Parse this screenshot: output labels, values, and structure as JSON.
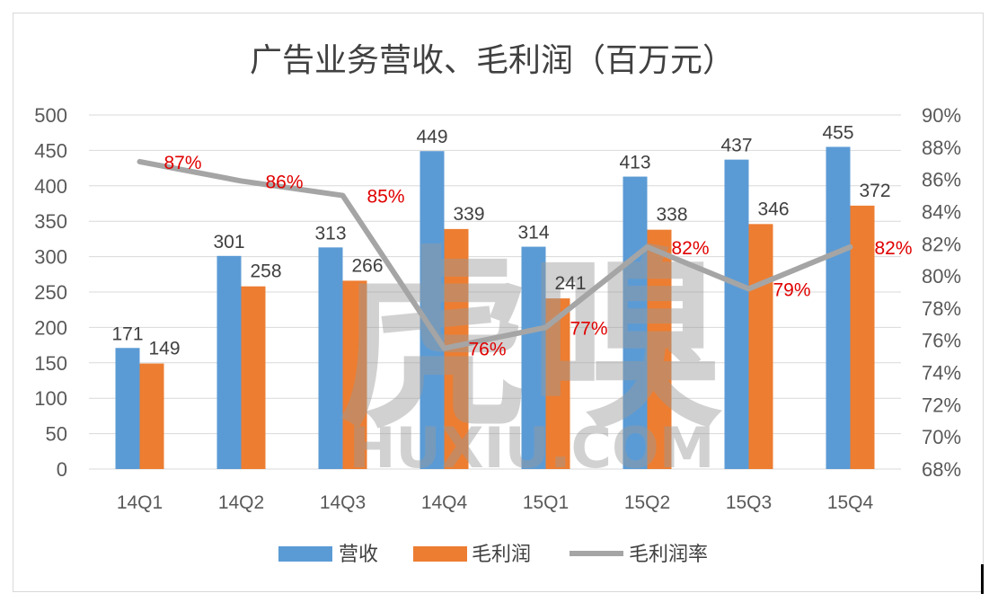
{
  "colors": {
    "revenue": "#5b9bd5",
    "profit": "#ed7d31",
    "margin": "#a5a5a5",
    "margin_label": "#e00000",
    "grid": "#d9d9d9"
  },
  "watermark": {
    "main": "虎嗅",
    "sub": "HUXIU.COM"
  },
  "chart_data": {
    "type": "bar",
    "title": "广告业务营收、毛利润（百万元）",
    "categories": [
      "14Q1",
      "14Q2",
      "14Q3",
      "14Q4",
      "15Q1",
      "15Q2",
      "15Q3",
      "15Q4"
    ],
    "series": [
      {
        "name": "营收",
        "type": "bar",
        "axis": "left",
        "values": [
          171,
          301,
          313,
          449,
          314,
          413,
          437,
          455
        ]
      },
      {
        "name": "毛利润",
        "type": "bar",
        "axis": "left",
        "values": [
          149,
          258,
          266,
          339,
          241,
          338,
          346,
          372
        ]
      },
      {
        "name": "毛利润率",
        "type": "line",
        "axis": "right",
        "values": [
          87.1,
          85.9,
          85.0,
          75.5,
          76.8,
          81.8,
          79.2,
          81.8
        ],
        "labels": [
          "87%",
          "86%",
          "85%",
          "76%",
          "77%",
          "82%",
          "79%",
          "82%"
        ]
      }
    ],
    "y_left": {
      "min": 0,
      "max": 500,
      "step": 50
    },
    "y_right": {
      "min": 68,
      "max": 90,
      "step": 2,
      "suffix": "%"
    },
    "grid": true,
    "legend_position": "bottom"
  }
}
